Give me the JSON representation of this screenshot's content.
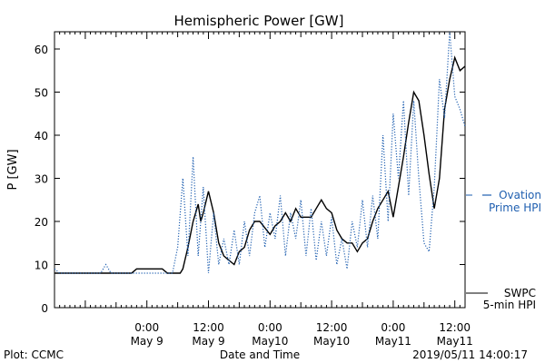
{
  "chart_data": {
    "type": "line",
    "title": "Hemispheric Power [GW]",
    "xlabel": "Date and Time",
    "ylabel": "P [GW]",
    "ylim": [
      0,
      64
    ],
    "xlim": [
      "2019-05-08 06:00",
      "2019-05-11 14:00"
    ],
    "grid": false,
    "yticks": [
      0,
      10,
      20,
      30,
      40,
      50,
      60
    ],
    "xticks": [
      {
        "x": "2019-05-09 00:00",
        "label1": "0:00",
        "label2": "May 9"
      },
      {
        "x": "2019-05-09 12:00",
        "label1": "12:00",
        "label2": "May 9"
      },
      {
        "x": "2019-05-10 00:00",
        "label1": "0:00",
        "label2": "May10"
      },
      {
        "x": "2019-05-10 12:00",
        "label1": "12:00",
        "label2": "May10"
      },
      {
        "x": "2019-05-11 00:00",
        "label1": "0:00",
        "label2": "May11"
      },
      {
        "x": "2019-05-11 12:00",
        "label1": "12:00",
        "label2": "May11"
      }
    ],
    "legend_placement": "right",
    "series": [
      {
        "name": "SWPC 5-min HPI",
        "legend_line1": "SWPC",
        "legend_line2": "5-min HPI",
        "style": "solid",
        "color": "#000000",
        "points": [
          [
            "2019-05-08 06:00",
            8
          ],
          [
            "2019-05-08 21:00",
            8
          ],
          [
            "2019-05-08 22:00",
            9
          ],
          [
            "2019-05-09 03:00",
            9
          ],
          [
            "2019-05-09 04:00",
            8
          ],
          [
            "2019-05-09 06:30",
            8
          ],
          [
            "2019-05-09 07:00",
            9
          ],
          [
            "2019-05-09 08:00",
            14
          ],
          [
            "2019-05-09 09:00",
            20
          ],
          [
            "2019-05-09 10:00",
            24
          ],
          [
            "2019-05-09 10:30",
            20
          ],
          [
            "2019-05-09 11:00",
            22
          ],
          [
            "2019-05-09 12:00",
            27
          ],
          [
            "2019-05-09 13:00",
            22
          ],
          [
            "2019-05-09 14:00",
            15
          ],
          [
            "2019-05-09 15:00",
            12
          ],
          [
            "2019-05-09 16:00",
            11
          ],
          [
            "2019-05-09 17:00",
            10
          ],
          [
            "2019-05-09 18:00",
            13
          ],
          [
            "2019-05-09 19:00",
            14
          ],
          [
            "2019-05-09 20:00",
            18
          ],
          [
            "2019-05-09 21:00",
            20
          ],
          [
            "2019-05-09 22:00",
            20
          ],
          [
            "2019-05-10 00:00",
            17
          ],
          [
            "2019-05-10 01:00",
            19
          ],
          [
            "2019-05-10 02:00",
            20
          ],
          [
            "2019-05-10 03:00",
            22
          ],
          [
            "2019-05-10 04:00",
            20
          ],
          [
            "2019-05-10 05:00",
            23
          ],
          [
            "2019-05-10 06:00",
            21
          ],
          [
            "2019-05-10 07:00",
            21
          ],
          [
            "2019-05-10 08:00",
            21
          ],
          [
            "2019-05-10 09:00",
            23
          ],
          [
            "2019-05-10 10:00",
            25
          ],
          [
            "2019-05-10 11:00",
            23
          ],
          [
            "2019-05-10 12:00",
            22
          ],
          [
            "2019-05-10 13:00",
            18
          ],
          [
            "2019-05-10 14:00",
            16
          ],
          [
            "2019-05-10 15:00",
            15
          ],
          [
            "2019-05-10 16:00",
            15
          ],
          [
            "2019-05-10 17:00",
            13
          ],
          [
            "2019-05-10 18:00",
            15
          ],
          [
            "2019-05-10 19:00",
            16
          ],
          [
            "2019-05-10 20:00",
            20
          ],
          [
            "2019-05-10 21:00",
            23
          ],
          [
            "2019-05-10 22:00",
            25
          ],
          [
            "2019-05-10 23:00",
            27
          ],
          [
            "2019-05-11 00:00",
            21
          ],
          [
            "2019-05-11 01:00",
            28
          ],
          [
            "2019-05-11 02:00",
            35
          ],
          [
            "2019-05-11 03:00",
            43
          ],
          [
            "2019-05-11 04:00",
            50
          ],
          [
            "2019-05-11 05:00",
            48
          ],
          [
            "2019-05-11 06:00",
            40
          ],
          [
            "2019-05-11 07:00",
            31
          ],
          [
            "2019-05-11 08:00",
            23
          ],
          [
            "2019-05-11 09:00",
            30
          ],
          [
            "2019-05-11 10:00",
            46
          ],
          [
            "2019-05-11 11:00",
            53
          ],
          [
            "2019-05-11 12:00",
            58
          ],
          [
            "2019-05-11 13:00",
            55
          ],
          [
            "2019-05-11 14:00",
            56
          ]
        ]
      },
      {
        "name": "Ovation Prime HPI",
        "legend_line1": "Ovation",
        "legend_line2": "Prime HPI",
        "style": "dotted",
        "color": "#1f5fb0",
        "points": [
          [
            "2019-05-08 06:00",
            9
          ],
          [
            "2019-05-08 07:00",
            8
          ],
          [
            "2019-05-08 15:00",
            8
          ],
          [
            "2019-05-08 16:00",
            10
          ],
          [
            "2019-05-08 17:00",
            8
          ],
          [
            "2019-05-09 05:00",
            8
          ],
          [
            "2019-05-09 06:00",
            14
          ],
          [
            "2019-05-09 07:00",
            30
          ],
          [
            "2019-05-09 08:00",
            12
          ],
          [
            "2019-05-09 09:00",
            35
          ],
          [
            "2019-05-09 10:00",
            12
          ],
          [
            "2019-05-09 11:00",
            28
          ],
          [
            "2019-05-09 12:00",
            8
          ],
          [
            "2019-05-09 13:00",
            22
          ],
          [
            "2019-05-09 14:00",
            10
          ],
          [
            "2019-05-09 15:00",
            16
          ],
          [
            "2019-05-09 16:00",
            10
          ],
          [
            "2019-05-09 17:00",
            18
          ],
          [
            "2019-05-09 18:00",
            10
          ],
          [
            "2019-05-09 19:00",
            20
          ],
          [
            "2019-05-09 20:00",
            12
          ],
          [
            "2019-05-09 21:00",
            22
          ],
          [
            "2019-05-09 22:00",
            26
          ],
          [
            "2019-05-09 23:00",
            14
          ],
          [
            "2019-05-10 00:00",
            22
          ],
          [
            "2019-05-10 01:00",
            16
          ],
          [
            "2019-05-10 02:00",
            26
          ],
          [
            "2019-05-10 03:00",
            12
          ],
          [
            "2019-05-10 04:00",
            22
          ],
          [
            "2019-05-10 05:00",
            16
          ],
          [
            "2019-05-10 06:00",
            25
          ],
          [
            "2019-05-10 07:00",
            12
          ],
          [
            "2019-05-10 08:00",
            23
          ],
          [
            "2019-05-10 09:00",
            11
          ],
          [
            "2019-05-10 10:00",
            20
          ],
          [
            "2019-05-10 11:00",
            12
          ],
          [
            "2019-05-10 12:00",
            21
          ],
          [
            "2019-05-10 13:00",
            10
          ],
          [
            "2019-05-10 14:00",
            16
          ],
          [
            "2019-05-10 15:00",
            9
          ],
          [
            "2019-05-10 16:00",
            20
          ],
          [
            "2019-05-10 17:00",
            14
          ],
          [
            "2019-05-10 18:00",
            25
          ],
          [
            "2019-05-10 19:00",
            14
          ],
          [
            "2019-05-10 20:00",
            26
          ],
          [
            "2019-05-10 21:00",
            16
          ],
          [
            "2019-05-10 22:00",
            40
          ],
          [
            "2019-05-10 23:00",
            20
          ],
          [
            "2019-05-11 00:00",
            45
          ],
          [
            "2019-05-11 01:00",
            30
          ],
          [
            "2019-05-11 02:00",
            48
          ],
          [
            "2019-05-11 03:00",
            26
          ],
          [
            "2019-05-11 04:00",
            48
          ],
          [
            "2019-05-11 05:00",
            30
          ],
          [
            "2019-05-11 06:00",
            15
          ],
          [
            "2019-05-11 07:00",
            13
          ],
          [
            "2019-05-11 08:00",
            28
          ],
          [
            "2019-05-11 09:00",
            53
          ],
          [
            "2019-05-11 10:00",
            44
          ],
          [
            "2019-05-11 11:00",
            64
          ],
          [
            "2019-05-11 12:00",
            49
          ],
          [
            "2019-05-11 13:00",
            46
          ],
          [
            "2019-05-11 14:00",
            42
          ]
        ]
      }
    ],
    "footer_left": "Plot: CCMC",
    "footer_right": "2019/05/11 14:00:17"
  }
}
